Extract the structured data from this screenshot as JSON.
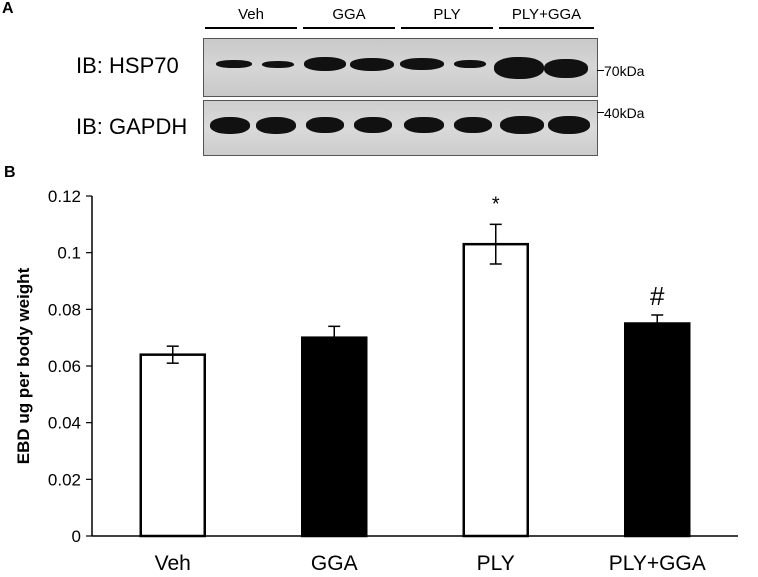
{
  "panels": {
    "a_label": "A",
    "b_label": "B"
  },
  "blot": {
    "lanes": [
      "Veh",
      "GGA",
      "PLY",
      "PLY+GGA"
    ],
    "rows": [
      {
        "label": "IB:  HSP70",
        "marker": "70kDa"
      },
      {
        "label": "IB:  GAPDH",
        "marker": "40kDa"
      }
    ]
  },
  "chart_data": {
    "type": "bar",
    "categories": [
      "Veh",
      "GGA",
      "PLY",
      "PLY+GGA"
    ],
    "values": [
      0.064,
      0.07,
      0.103,
      0.075
    ],
    "errors": [
      0.003,
      0.004,
      0.007,
      0.003
    ],
    "fills": [
      "#ffffff",
      "#000000",
      "#ffffff",
      "#000000"
    ],
    "annotations": [
      "",
      "",
      "*",
      "#"
    ],
    "ylabel": "EBD ug per body weight",
    "ylim": [
      0,
      0.12
    ],
    "yticks": [
      0,
      0.02,
      0.04,
      0.06,
      0.08,
      0.1,
      0.12
    ],
    "ytick_labels": [
      "0",
      "0.02",
      "0.04",
      "0.06",
      "0.08",
      "0.1",
      "0.12"
    ],
    "grid": false
  }
}
